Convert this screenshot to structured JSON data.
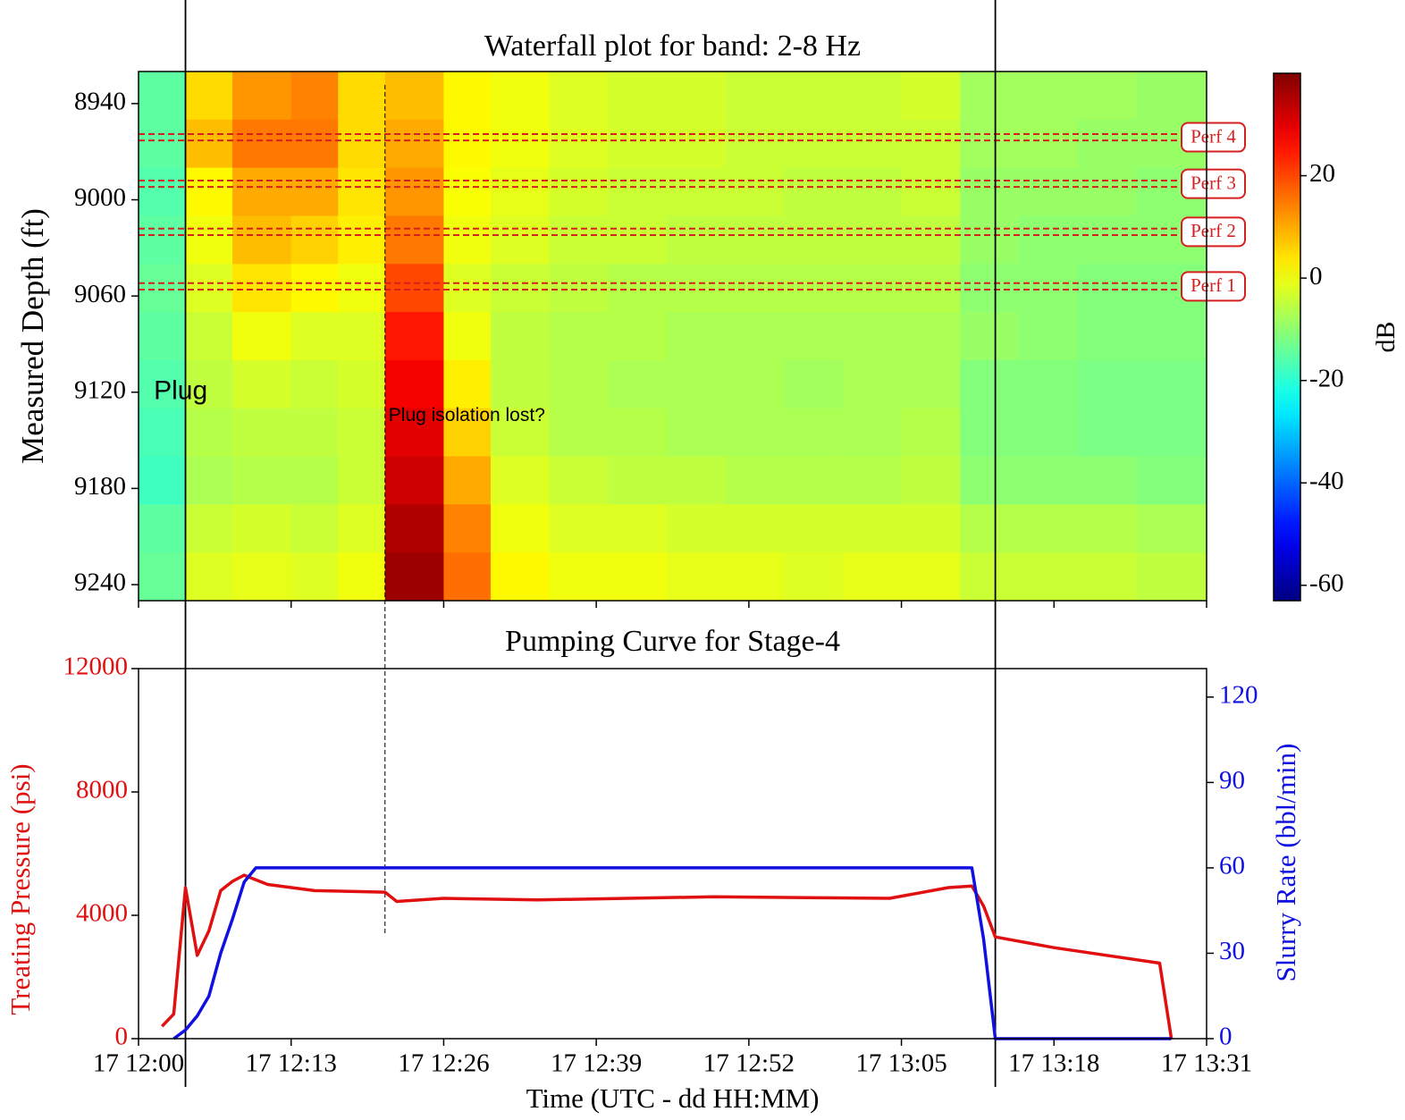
{
  "chart_data": [
    {
      "type": "heatmap",
      "title": "Waterfall plot for band: 2-8 Hz",
      "ylabel": "Measured Depth (ft)",
      "colorbar_label": "dB",
      "xlim": [
        "17 12:00",
        "17 13:31"
      ],
      "xticks": [
        "17 12:00",
        "17 12:13",
        "17 12:26",
        "17 12:39",
        "17 12:52",
        "17 13:05",
        "17 13:18",
        "17 13:31"
      ],
      "ylim": [
        9250,
        8920
      ],
      "yticks": [
        8940,
        9000,
        9060,
        9120,
        9180,
        9240
      ],
      "clim": [
        -63,
        40
      ],
      "cticks": [
        -60,
        -40,
        -20,
        0,
        20
      ],
      "colormap": "jet",
      "x_edges": [
        "17 12:00",
        "17 12:04",
        "17 12:08",
        "17 12:13",
        "17 12:17",
        "17 12:21",
        "17 12:26",
        "17 12:30",
        "17 12:35",
        "17 12:40",
        "17 12:45",
        "17 12:50",
        "17 12:55",
        "17 13:00",
        "17 13:05",
        "17 13:10",
        "17 13:15",
        "17 13:20",
        "17 13:25",
        "17 13:31"
      ],
      "y_edges": [
        8920,
        8950,
        8980,
        9010,
        9040,
        9070,
        9100,
        9130,
        9160,
        9190,
        9220,
        9250
      ],
      "z": [
        [
          -15,
          5,
          12,
          14,
          5,
          8,
          2,
          0,
          -2,
          -3,
          -3,
          -4,
          -4,
          -4,
          -3,
          -8,
          -8,
          -8,
          -9
        ],
        [
          -15,
          8,
          15,
          15,
          5,
          10,
          2,
          0,
          -2,
          -3,
          -3,
          -4,
          -4,
          -4,
          -4,
          -8,
          -8,
          -9,
          -9
        ],
        [
          -16,
          2,
          10,
          10,
          4,
          12,
          1,
          -1,
          -3,
          -4,
          -4,
          -4,
          -5,
          -5,
          -4,
          -9,
          -9,
          -9,
          -10
        ],
        [
          -15,
          0,
          8,
          6,
          3,
          15,
          0,
          -2,
          -4,
          -4,
          -5,
          -5,
          -5,
          -5,
          -5,
          -9,
          -10,
          -10,
          -10
        ],
        [
          -14,
          -2,
          4,
          2,
          0,
          20,
          -2,
          -4,
          -5,
          -6,
          -6,
          -6,
          -6,
          -6,
          -6,
          -10,
          -10,
          -11,
          -11
        ],
        [
          -15,
          -4,
          0,
          -2,
          -2,
          25,
          0,
          -5,
          -6,
          -6,
          -7,
          -7,
          -7,
          -7,
          -7,
          -9,
          -10,
          -11,
          -11
        ],
        [
          -16,
          -5,
          -3,
          -4,
          -3,
          28,
          3,
          -5,
          -6,
          -7,
          -7,
          -7,
          -8,
          -7,
          -7,
          -11,
          -11,
          -12,
          -12
        ],
        [
          -17,
          -6,
          -5,
          -5,
          -4,
          30,
          6,
          -4,
          -6,
          -6,
          -7,
          -7,
          -7,
          -7,
          -6,
          -11,
          -11,
          -12,
          -12
        ],
        [
          -18,
          -7,
          -6,
          -6,
          -4,
          32,
          10,
          -2,
          -4,
          -5,
          -5,
          -6,
          -6,
          -6,
          -5,
          -10,
          -10,
          -10,
          -11
        ],
        [
          -15,
          -4,
          -3,
          -4,
          -2,
          35,
          14,
          0,
          -2,
          -2,
          -3,
          -3,
          -3,
          -3,
          -3,
          -6,
          -6,
          -6,
          -7
        ],
        [
          -14,
          -2,
          -1,
          -2,
          0,
          37,
          16,
          2,
          0,
          0,
          -1,
          -1,
          -2,
          -1,
          -1,
          -4,
          -4,
          -4,
          -5
        ]
      ],
      "perfs": [
        {
          "label": "Perf 4",
          "top": 8959,
          "bottom": 8963
        },
        {
          "label": "Perf 3",
          "top": 8988,
          "bottom": 8992
        },
        {
          "label": "Perf 2",
          "top": 9018,
          "bottom": 9022
        },
        {
          "label": "Perf 1",
          "top": 9052,
          "bottom": 9056
        }
      ],
      "perf_color": "#d62020",
      "vlines": [
        "17 12:04",
        "17 13:13"
      ],
      "event_line": "17 12:21",
      "annotations": [
        {
          "text": "Plug",
          "x": "17 12:01",
          "y": 9120
        },
        {
          "text": "Plug isolation lost?",
          "x": "17 12:21",
          "y": 9135
        }
      ]
    },
    {
      "type": "line",
      "title": "Pumping Curve for Stage-4",
      "xlabel": "Time (UTC - dd HH:MM)",
      "ylabel": "Treating Pressure (psi)",
      "y2label": "Slurry Rate (bbl/min)",
      "xlim": [
        "17 12:00",
        "17 13:31"
      ],
      "xticks": [
        "17 12:00",
        "17 12:13",
        "17 12:26",
        "17 12:39",
        "17 12:52",
        "17 13:05",
        "17 13:18",
        "17 13:31"
      ],
      "ylim": [
        0,
        12000
      ],
      "yticks": [
        0,
        4000,
        8000,
        12000
      ],
      "y2lim": [
        0,
        130
      ],
      "y2ticks": [
        0,
        30,
        60,
        90,
        120
      ],
      "series": [
        {
          "name": "Treating Pressure",
          "color": "#e01010",
          "axis": "y",
          "x": [
            "17 12:02",
            "17 12:03",
            "17 12:04",
            "17 12:05",
            "17 12:06",
            "17 12:07",
            "17 12:08",
            "17 12:09",
            "17 12:11",
            "17 12:15",
            "17 12:21",
            "17 12:22",
            "17 12:26",
            "17 12:34",
            "17 12:49",
            "17 13:04",
            "17 13:09",
            "17 13:11",
            "17 13:12",
            "17 13:13",
            "17 13:18",
            "17 13:27",
            "17 13:28"
          ],
          "values": [
            400,
            800,
            4900,
            2700,
            3500,
            4800,
            5100,
            5300,
            5000,
            4800,
            4750,
            4450,
            4550,
            4500,
            4600,
            4550,
            4900,
            4950,
            4300,
            3300,
            2950,
            2450,
            0
          ]
        },
        {
          "name": "Slurry Rate",
          "color": "#1010e0",
          "axis": "y2",
          "x": [
            "17 12:03",
            "17 12:04",
            "17 12:05",
            "17 12:06",
            "17 12:07",
            "17 12:08",
            "17 12:09",
            "17 12:10",
            "17 12:21",
            "17 13:11",
            "17 13:12",
            "17 13:13",
            "17 13:28"
          ],
          "values": [
            0,
            3,
            8,
            15,
            30,
            42,
            55,
            60,
            60,
            60,
            35,
            0,
            0
          ]
        }
      ]
    }
  ]
}
